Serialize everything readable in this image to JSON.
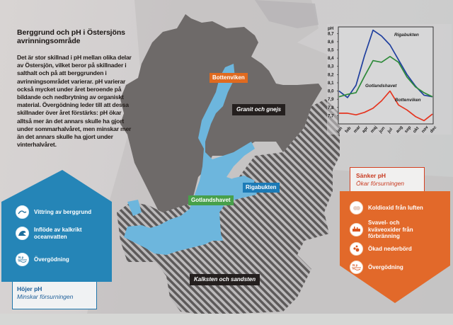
{
  "title": "Berggrund och pH i Östersjöns avrinningsområde",
  "body_text": "Det är stor skillnad i pH mellan olika delar av Östersjön, vilket beror på skillnader i salthalt och på att berggrunden i avrinningsområdet varierar. pH varierar också mycket under året beroende på bildande och nedbrytning av organiskt material. Övergödning leder till att dessa skillnader över året förstärks: pH ökar alltså mer än det annars skulle ha gjort under sommarhalvåret, men minskar mer än det annars skulle ha gjort under vinterhalvåret.",
  "map": {
    "labels": {
      "bottenviken": "Bottenviken",
      "granit": "Granit och gnejs",
      "gotlandshavet": "Gotlandshavet",
      "rigabukten": "Rigabukten",
      "kalksten": "Kalksten och sandsten"
    },
    "colors": {
      "water": "#6db6dd",
      "granite": "#6e6a69",
      "limestone_stripe_dark": "#5e5b5b",
      "limestone_stripe_light": "#b9b7b8",
      "land": "#bdbabb"
    }
  },
  "raises_panel": {
    "color": "#2585b7",
    "items": [
      {
        "icon": "weathering-icon",
        "label": "Vittring av berggrund"
      },
      {
        "icon": "ocean-wave-icon",
        "label": "Inflöde av kalkrikt oceanvatten"
      },
      {
        "icon": "nutrient-np-icon",
        "label": "Övergödning"
      }
    ],
    "caption_title": "Höjer pH",
    "caption_sub": "Minskar försurningen"
  },
  "lowers_panel": {
    "color": "#e2692a",
    "caption_title": "Sänker pH",
    "caption_sub": "Ökar försurningen",
    "items": [
      {
        "icon": "co2-cloud-icon",
        "label": "Koldioxid från luften"
      },
      {
        "icon": "factory-emissions-icon",
        "label": "Svavel- och kväveoxider från förbränning"
      },
      {
        "icon": "rain-drops-icon",
        "label": "Ökad nederbörd"
      },
      {
        "icon": "nutrient-np-icon",
        "label": "Övergödning"
      }
    ]
  },
  "chart_data": {
    "type": "line",
    "title": "",
    "xlabel": "",
    "ylabel": "pH",
    "categories": [
      "jan",
      "feb",
      "mar",
      "apr",
      "maj",
      "jun",
      "jul",
      "aug",
      "sep",
      "okt",
      "nov",
      "dec"
    ],
    "y_ticks": [
      "8,7",
      "8,6",
      "8,5",
      "8,4",
      "8,3",
      "8,2",
      "8,1",
      "8,0",
      "7,9",
      "7,8",
      "7,7"
    ],
    "ylim": [
      7.6,
      8.78
    ],
    "grid": false,
    "series": [
      {
        "name": "Rigabukten",
        "color": "#1f3f9e",
        "values": [
          8.0,
          7.92,
          8.07,
          8.43,
          8.74,
          8.67,
          8.56,
          8.38,
          8.2,
          8.06,
          7.95,
          7.93
        ]
      },
      {
        "name": "Gotlandshavet",
        "color": "#2e8a3a",
        "values": [
          7.93,
          7.96,
          7.98,
          8.18,
          8.37,
          8.35,
          8.42,
          8.35,
          8.17,
          8.05,
          7.98,
          7.93
        ]
      },
      {
        "name": "Bottenviken",
        "color": "#e5341f",
        "values": [
          7.73,
          7.73,
          7.71,
          7.74,
          7.79,
          7.88,
          8.0,
          7.83,
          7.77,
          7.69,
          7.64,
          7.72
        ]
      }
    ]
  }
}
